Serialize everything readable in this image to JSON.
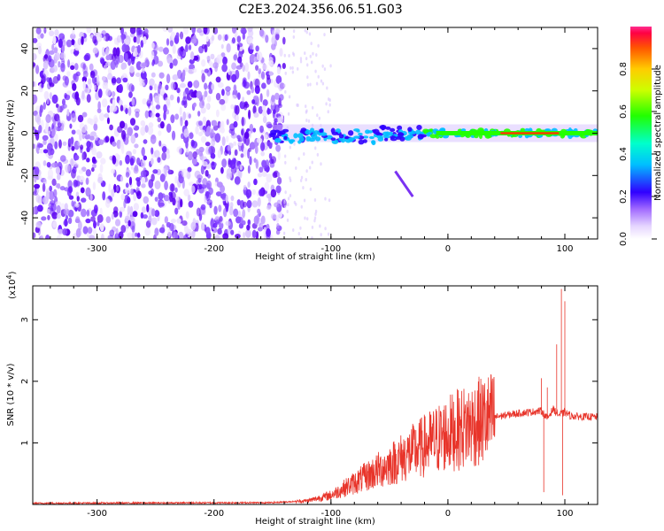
{
  "title": "C2E3.2024.356.06.51.G03",
  "colors": {
    "snr_line": "#e8342a",
    "scatter_purple": "#6a1cff",
    "axes": "#000000"
  },
  "chart_data": [
    {
      "type": "heatmap",
      "name": "spectrogram",
      "xlabel": "Height of straight line (km)",
      "ylabel": "Frequency (Hz)",
      "xlim": [
        -355,
        128
      ],
      "ylim": [
        -50,
        50
      ],
      "xticks": [
        -300,
        -200,
        -100,
        0,
        100
      ],
      "yticks": [
        -40,
        -20,
        0,
        20,
        40
      ],
      "colorbar": {
        "label": "Normalized spectral amplitude",
        "ticks": [
          "0.0",
          "0.2",
          "0.4",
          "0.6",
          "0.8"
        ],
        "range": [
          0,
          1
        ],
        "colormap": "rainbow"
      },
      "band": {
        "center_hz": 0,
        "x_start": -150,
        "x_end": 128
      },
      "diagonal_streak": {
        "from": [
          -45,
          -18
        ],
        "to": [
          -30,
          -30
        ]
      }
    },
    {
      "type": "line",
      "name": "snr",
      "xlabel": "Height of straight line (km)",
      "ylabel": "SNR (10 * v/v)",
      "y_multiplier": "(x10",
      "y_multiplier_exp": "4",
      "xlim": [
        -355,
        128
      ],
      "ylim": [
        0,
        3.55
      ],
      "xticks": [
        -300,
        -200,
        -100,
        0,
        100
      ],
      "yticks": [
        1,
        2,
        3
      ],
      "envelope": {
        "x": [
          -355,
          -150,
          -120,
          -100,
          -80,
          -60,
          -40,
          -20,
          0,
          20,
          40,
          60,
          70,
          80,
          85,
          90,
          95,
          100,
          105,
          110,
          128
        ],
        "y": [
          0.02,
          0.03,
          0.06,
          0.15,
          0.35,
          0.55,
          0.75,
          0.95,
          1.15,
          1.3,
          1.42,
          1.48,
          1.5,
          1.52,
          1.4,
          1.55,
          1.45,
          1.5,
          1.44,
          1.43,
          1.42
        ]
      },
      "spikes": [
        {
          "x": -40,
          "y": 1.0
        },
        {
          "x": -22,
          "y": 1.2
        },
        {
          "x": 12,
          "y": 0.85
        },
        {
          "x": 80,
          "y": 2.05
        },
        {
          "x": 85,
          "y": 1.9
        },
        {
          "x": 82,
          "y": 0.2
        },
        {
          "x": 97,
          "y": 3.5
        },
        {
          "x": 100,
          "y": 3.3
        },
        {
          "x": 98,
          "y": 0.15
        },
        {
          "x": 93,
          "y": 2.6
        }
      ]
    }
  ]
}
